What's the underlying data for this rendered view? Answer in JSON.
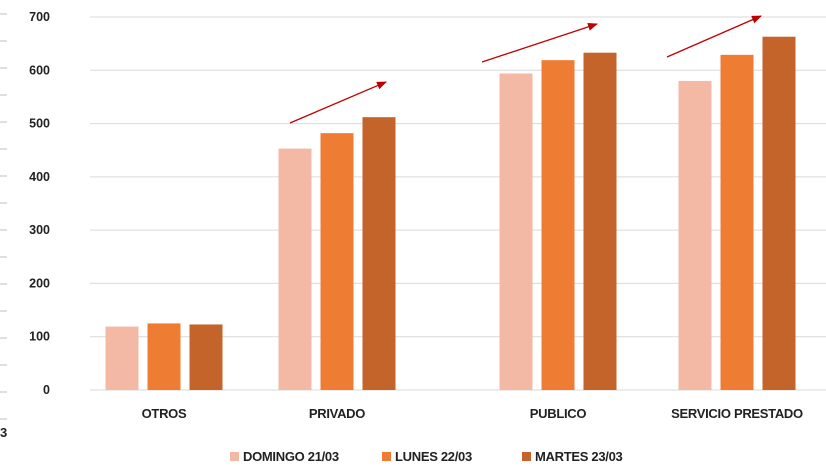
{
  "chart_data": {
    "type": "bar",
    "categories": [
      "OTROS",
      "PRIVADO",
      "PUBLICO",
      "SERVICIO PRESTADO"
    ],
    "series": [
      {
        "name": "DOMINGO 21/03",
        "values": [
          119,
          453,
          594,
          580
        ]
      },
      {
        "name": "LUNES 22/03",
        "values": [
          125,
          482,
          619,
          629
        ]
      },
      {
        "name": "MARTES 23/03",
        "values": [
          123,
          512,
          633,
          663
        ]
      }
    ],
    "ylim": [
      0,
      700
    ],
    "yticks": [
      0,
      100,
      200,
      300,
      400,
      500,
      600,
      700
    ],
    "grid": true,
    "legend_position": "bottom",
    "annotations": "upward red arrows above PRIVADO, PUBLICO and SERVICIO PRESTADO",
    "edge_text": "3"
  },
  "colors": {
    "series": [
      "#F4B9A4",
      "#EE7D33",
      "#C4632A"
    ],
    "arrow": "#C00000",
    "grid": "#D9D9D9"
  }
}
